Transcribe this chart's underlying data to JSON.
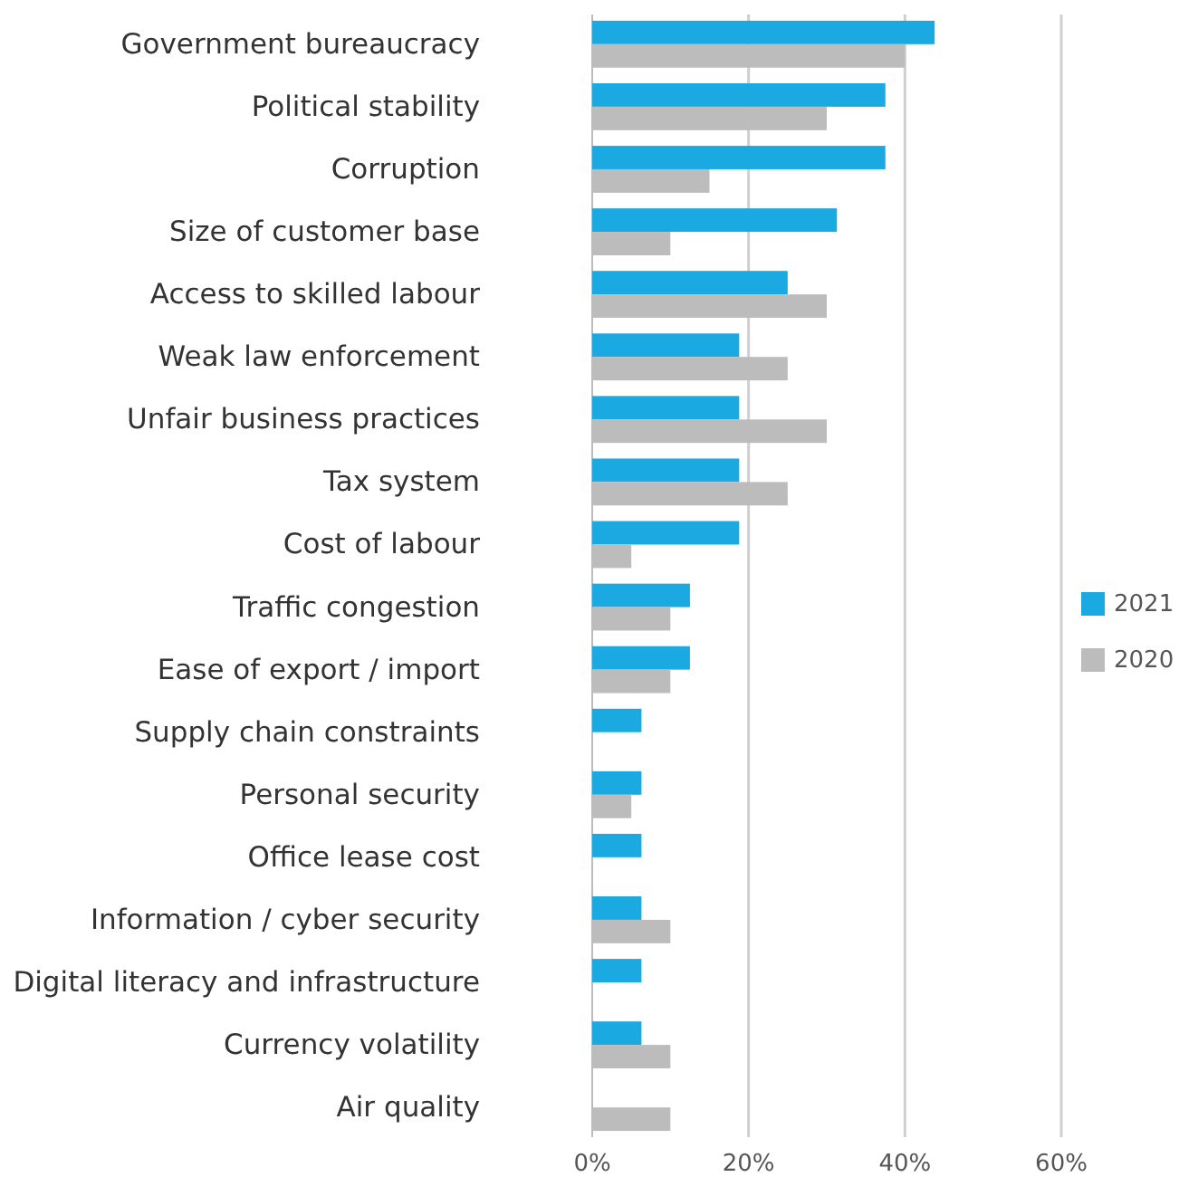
{
  "chart_data": {
    "type": "bar",
    "orientation": "horizontal",
    "categories": [
      "Government bureaucracy",
      "Political stability",
      "Corruption",
      "Size of customer base",
      "Access to skilled labour",
      "Weak law enforcement",
      "Unfair business practices",
      "Tax system",
      "Cost of labour",
      "Traffic congestion",
      "Ease of export / import",
      "Supply chain constraints",
      "Personal security",
      "Office lease cost",
      "Information / cyber security",
      "Digital literacy and infrastructure",
      "Currency volatility",
      "Air quality"
    ],
    "series": [
      {
        "name": "2021",
        "color": "#1ba9e1",
        "values": [
          43.8,
          37.5,
          37.5,
          31.3,
          25,
          18.8,
          18.8,
          18.8,
          18.8,
          12.5,
          12.5,
          6.3,
          6.3,
          6.3,
          6.3,
          6.3,
          6.3,
          null
        ]
      },
      {
        "name": "2020",
        "color": "#bdbcbc",
        "values": [
          40,
          30,
          15,
          10,
          30,
          25,
          30,
          25,
          5,
          10,
          10,
          null,
          5,
          null,
          10,
          null,
          10,
          10
        ]
      }
    ],
    "xlim": [
      0,
      60
    ],
    "xticks": [
      {
        "value": 0,
        "label": "0%"
      },
      {
        "value": 20,
        "label": "20%"
      },
      {
        "value": 40,
        "label": "40%"
      },
      {
        "value": 60,
        "label": "60%"
      }
    ],
    "grid": "x",
    "legend": "right"
  }
}
